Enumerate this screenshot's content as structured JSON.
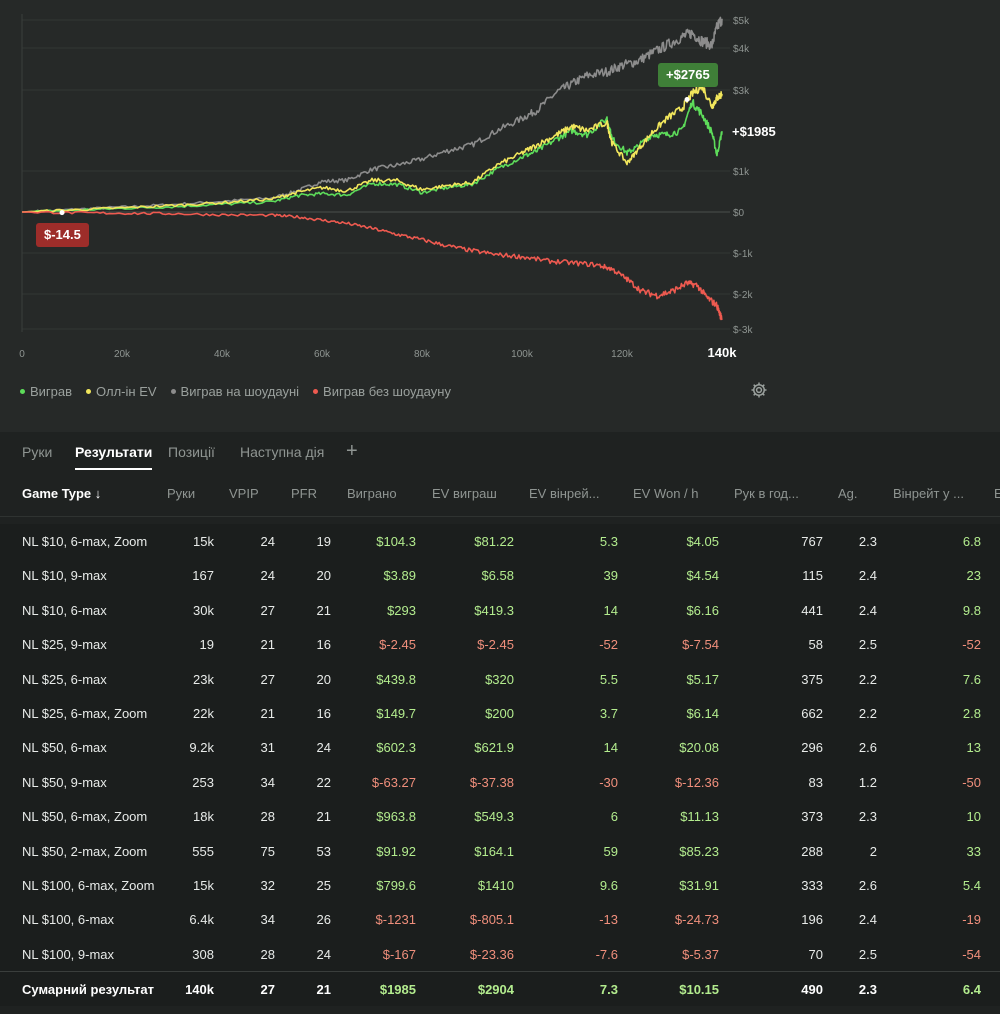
{
  "chart_data": {
    "type": "line",
    "x_ticks": [
      "0",
      "20k",
      "40k",
      "60k",
      "80k",
      "100k",
      "120k",
      "140k"
    ],
    "y_ticks": [
      "$5k",
      "$4k",
      "$3k",
      "$1k",
      "$0",
      "$-1k",
      "$-2k",
      "$-3k"
    ],
    "xlim": [
      0,
      140000
    ],
    "ylim": [
      -3000,
      5000
    ],
    "series": [
      {
        "name": "Виграв",
        "color": "#5ddc5a",
        "final": 1985,
        "points": [
          [
            0,
            0
          ],
          [
            10000,
            40
          ],
          [
            20000,
            90
          ],
          [
            30000,
            130
          ],
          [
            40000,
            190
          ],
          [
            50000,
            250
          ],
          [
            55000,
            400
          ],
          [
            60000,
            450
          ],
          [
            65000,
            420
          ],
          [
            70000,
            700
          ],
          [
            75000,
            680
          ],
          [
            80000,
            480
          ],
          [
            85000,
            600
          ],
          [
            90000,
            680
          ],
          [
            95000,
            1050
          ],
          [
            100000,
            1350
          ],
          [
            103000,
            1500
          ],
          [
            107000,
            1800
          ],
          [
            110000,
            2000
          ],
          [
            113000,
            1900
          ],
          [
            117000,
            2300
          ],
          [
            118000,
            1800
          ],
          [
            121000,
            1450
          ],
          [
            123000,
            1600
          ],
          [
            126000,
            1900
          ],
          [
            129000,
            1900
          ],
          [
            132000,
            2000
          ],
          [
            134000,
            2700
          ],
          [
            136000,
            2400
          ],
          [
            138000,
            1950
          ],
          [
            139000,
            1400
          ],
          [
            140000,
            1985
          ]
        ]
      },
      {
        "name": "Олл-ін EV",
        "color": "#f1e65c",
        "final": 2904,
        "points": [
          [
            0,
            0
          ],
          [
            10000,
            50
          ],
          [
            20000,
            100
          ],
          [
            30000,
            160
          ],
          [
            40000,
            230
          ],
          [
            50000,
            320
          ],
          [
            55000,
            480
          ],
          [
            60000,
            600
          ],
          [
            65000,
            520
          ],
          [
            70000,
            780
          ],
          [
            75000,
            770
          ],
          [
            80000,
            550
          ],
          [
            85000,
            650
          ],
          [
            90000,
            720
          ],
          [
            95000,
            1150
          ],
          [
            100000,
            1450
          ],
          [
            103000,
            1650
          ],
          [
            107000,
            1900
          ],
          [
            110000,
            2100
          ],
          [
            113000,
            2000
          ],
          [
            117000,
            2200
          ],
          [
            118000,
            1700
          ],
          [
            121000,
            1200
          ],
          [
            123000,
            1500
          ],
          [
            126000,
            1950
          ],
          [
            129000,
            2300
          ],
          [
            132000,
            2550
          ],
          [
            134000,
            2900
          ],
          [
            136000,
            3100
          ],
          [
            138000,
            2600
          ],
          [
            139000,
            2800
          ],
          [
            140000,
            2904
          ]
        ]
      },
      {
        "name": "Виграв на шоудауні",
        "color": "#8c8c8c",
        "final": 4750,
        "points": [
          [
            0,
            0
          ],
          [
            10000,
            60
          ],
          [
            20000,
            120
          ],
          [
            30000,
            180
          ],
          [
            40000,
            260
          ],
          [
            50000,
            340
          ],
          [
            55000,
            520
          ],
          [
            60000,
            750
          ],
          [
            65000,
            780
          ],
          [
            70000,
            1050
          ],
          [
            75000,
            1150
          ],
          [
            80000,
            1300
          ],
          [
            85000,
            1500
          ],
          [
            90000,
            1650
          ],
          [
            95000,
            2000
          ],
          [
            100000,
            2300
          ],
          [
            103000,
            2500
          ],
          [
            107000,
            2950
          ],
          [
            110000,
            3150
          ],
          [
            113000,
            3350
          ],
          [
            117000,
            3450
          ],
          [
            120000,
            3600
          ],
          [
            123000,
            3700
          ],
          [
            126000,
            3900
          ],
          [
            129000,
            4100
          ],
          [
            132000,
            4300
          ],
          [
            134000,
            4400
          ],
          [
            136000,
            4200
          ],
          [
            138000,
            4100
          ],
          [
            139000,
            4550
          ],
          [
            140000,
            4750
          ]
        ]
      },
      {
        "name": "Виграв без шоудауну",
        "color": "#ee5a50",
        "final": -2650,
        "points": [
          [
            0,
            0
          ],
          [
            10000,
            -20
          ],
          [
            20000,
            -30
          ],
          [
            30000,
            -40
          ],
          [
            40000,
            -70
          ],
          [
            50000,
            -80
          ],
          [
            55000,
            -120
          ],
          [
            60000,
            -200
          ],
          [
            65000,
            -280
          ],
          [
            70000,
            -400
          ],
          [
            75000,
            -550
          ],
          [
            80000,
            -680
          ],
          [
            85000,
            -830
          ],
          [
            90000,
            -950
          ],
          [
            95000,
            -1050
          ],
          [
            100000,
            -1100
          ],
          [
            105000,
            -1200
          ],
          [
            110000,
            -1250
          ],
          [
            115000,
            -1300
          ],
          [
            118000,
            -1400
          ],
          [
            121000,
            -1650
          ],
          [
            124000,
            -1950
          ],
          [
            127000,
            -2050
          ],
          [
            130000,
            -1950
          ],
          [
            133000,
            -1750
          ],
          [
            135000,
            -1800
          ],
          [
            137000,
            -2100
          ],
          [
            139000,
            -2300
          ],
          [
            140000,
            -2650
          ]
        ]
      }
    ],
    "annotations": [
      {
        "text": "+$2765",
        "color": "#3f7f38"
      },
      {
        "text": "$-14.5",
        "color": "#9d2d2a"
      },
      {
        "text": "+$1985"
      }
    ]
  },
  "legend": [
    {
      "label": "Виграв",
      "color": "#5ddc5a"
    },
    {
      "label": "Олл-ін EV",
      "color": "#f1e65c"
    },
    {
      "label": "Виграв на шоудауні",
      "color": "#8c8c8c"
    },
    {
      "label": "Виграв без шоудауну",
      "color": "#ee5a50"
    }
  ],
  "tabs": [
    "Руки",
    "Результати",
    "Позиції",
    "Наступна дія"
  ],
  "active_tab": "Результати",
  "columns": [
    "Game Type ↓",
    "Руки",
    "VPIP",
    "PFR",
    "Виграно",
    "EV виграш",
    "EV вінрей...",
    "EV Won / h",
    "Рук в год...",
    "Ag.",
    "Вінрейт у ...",
    "E"
  ],
  "rows": [
    [
      "NL $10, 6-max, Zoom",
      "15k",
      "24",
      "19",
      "$104.3",
      "$81.22",
      "5.3",
      "$4.05",
      "767",
      "2.3",
      "6.8"
    ],
    [
      "NL $10, 9-max",
      "167",
      "24",
      "20",
      "$3.89",
      "$6.58",
      "39",
      "$4.54",
      "115",
      "2.4",
      "23"
    ],
    [
      "NL $10, 6-max",
      "30k",
      "27",
      "21",
      "$293",
      "$419.3",
      "14",
      "$6.16",
      "441",
      "2.4",
      "9.8"
    ],
    [
      "NL $25, 9-max",
      "19",
      "21",
      "16",
      "$-2.45",
      "$-2.45",
      "-52",
      "$-7.54",
      "58",
      "2.5",
      "-52"
    ],
    [
      "NL $25, 6-max",
      "23k",
      "27",
      "20",
      "$439.8",
      "$320",
      "5.5",
      "$5.17",
      "375",
      "2.2",
      "7.6"
    ],
    [
      "NL $25, 6-max, Zoom",
      "22k",
      "21",
      "16",
      "$149.7",
      "$200",
      "3.7",
      "$6.14",
      "662",
      "2.2",
      "2.8"
    ],
    [
      "NL $50, 6-max",
      "9.2k",
      "31",
      "24",
      "$602.3",
      "$621.9",
      "14",
      "$20.08",
      "296",
      "2.6",
      "13"
    ],
    [
      "NL $50, 9-max",
      "253",
      "34",
      "22",
      "$-63.27",
      "$-37.38",
      "-30",
      "$-12.36",
      "83",
      "1.2",
      "-50"
    ],
    [
      "NL $50, 6-max, Zoom",
      "18k",
      "28",
      "21",
      "$963.8",
      "$549.3",
      "6",
      "$11.13",
      "373",
      "2.3",
      "10"
    ],
    [
      "NL $50, 2-max, Zoom",
      "555",
      "75",
      "53",
      "$91.92",
      "$164.1",
      "59",
      "$85.23",
      "288",
      "2",
      "33"
    ],
    [
      "NL $100, 6-max, Zoom",
      "15k",
      "32",
      "25",
      "$799.6",
      "$1410",
      "9.6",
      "$31.91",
      "333",
      "2.6",
      "5.4"
    ],
    [
      "NL $100, 6-max",
      "6.4k",
      "34",
      "26",
      "$-1231",
      "$-805.1",
      "-13",
      "$-24.73",
      "196",
      "2.4",
      "-19"
    ],
    [
      "NL $100, 9-max",
      "308",
      "28",
      "24",
      "$-167",
      "$-23.36",
      "-7.6",
      "$-5.37",
      "70",
      "2.5",
      "-54"
    ]
  ],
  "total": [
    "Сумарний результат",
    "140k",
    "27",
    "21",
    "$1985",
    "$2904",
    "7.3",
    "$10.15",
    "490",
    "2.3",
    "6.4"
  ]
}
